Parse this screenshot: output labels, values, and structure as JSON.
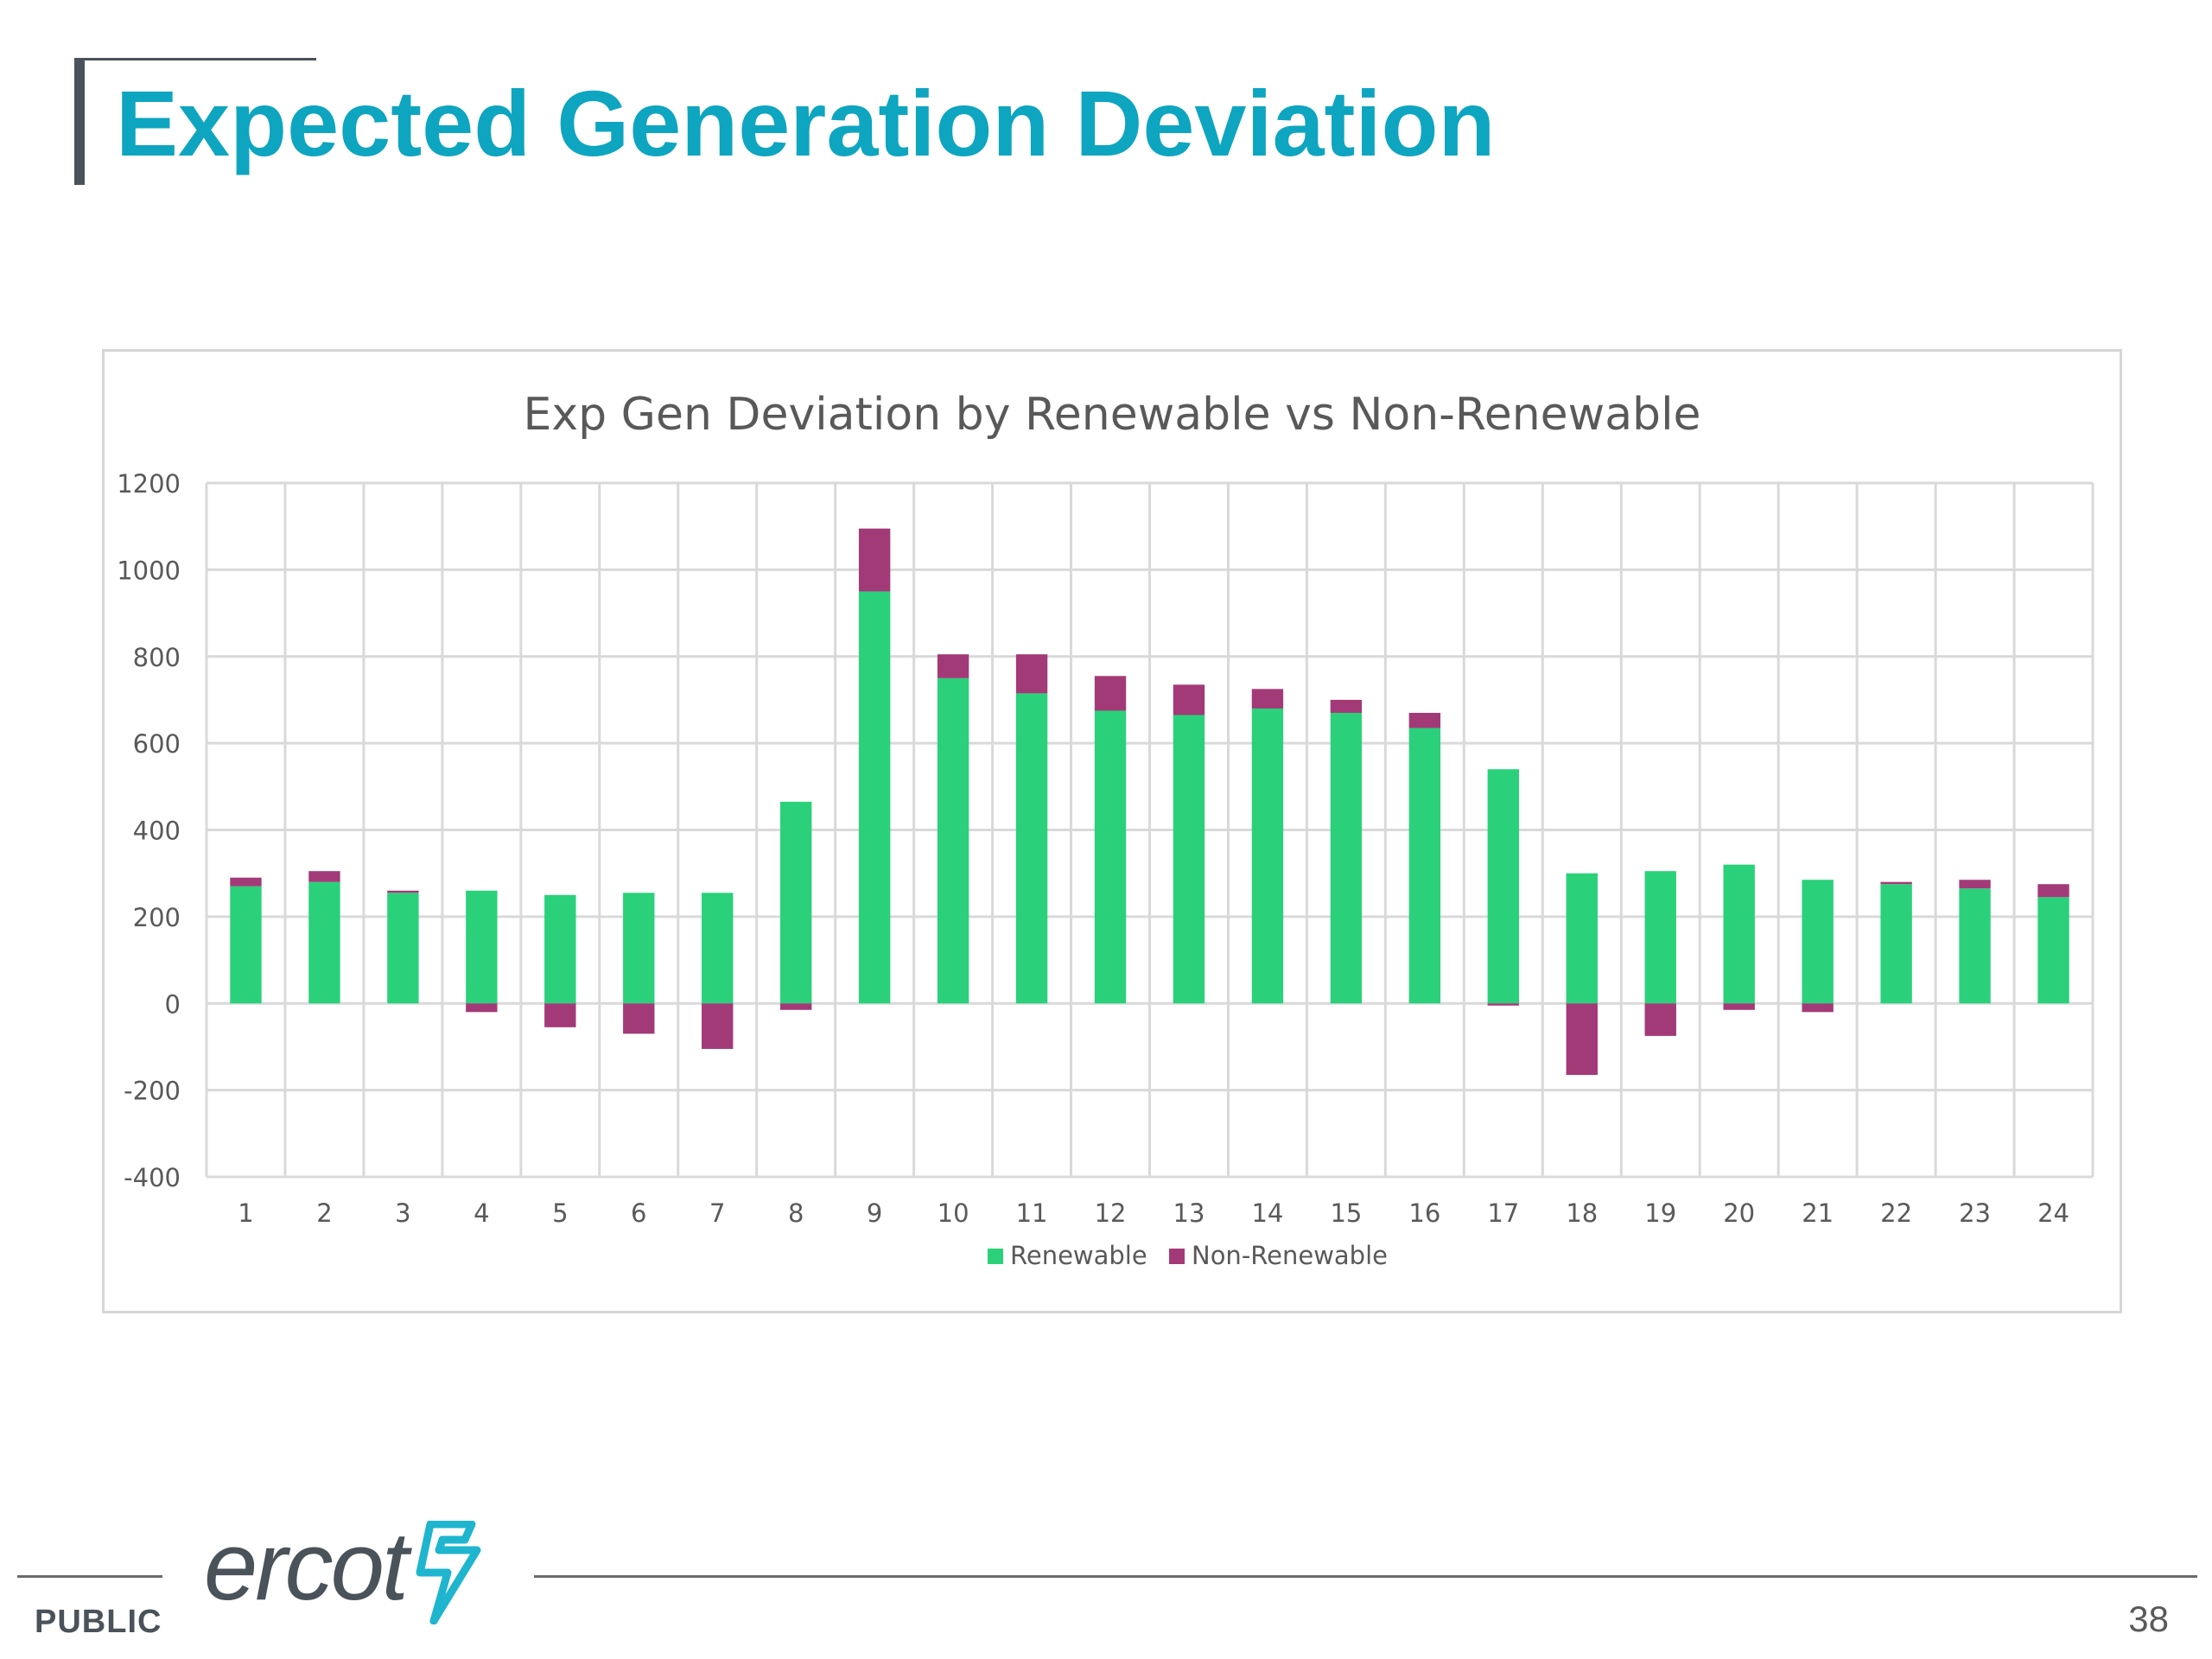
{
  "slide": {
    "title": "Expected Generation Deviation",
    "classification": "PUBLIC",
    "page_number": "38",
    "logo_text": "ercot"
  },
  "colors": {
    "title": "#0ea5c0",
    "renewable": "#2ad17a",
    "non_renewable": "#a33a78"
  },
  "chart_data": {
    "type": "bar",
    "stacked": true,
    "title": "Exp Gen Deviation by Renewable vs Non-Renewable",
    "xlabel": "",
    "ylabel": "",
    "categories": [
      "1",
      "2",
      "3",
      "4",
      "5",
      "6",
      "7",
      "8",
      "9",
      "10",
      "11",
      "12",
      "13",
      "14",
      "15",
      "16",
      "17",
      "18",
      "19",
      "20",
      "21",
      "22",
      "23",
      "24"
    ],
    "series": [
      {
        "name": "Renewable",
        "color": "#2ad17a",
        "values": [
          270,
          280,
          255,
          260,
          250,
          255,
          255,
          465,
          950,
          750,
          715,
          675,
          665,
          680,
          670,
          635,
          540,
          300,
          305,
          320,
          285,
          275,
          265,
          245
        ]
      },
      {
        "name": "Non-Renewable",
        "color": "#a33a78",
        "values": [
          20,
          25,
          5,
          -20,
          -55,
          -70,
          -105,
          -15,
          145,
          55,
          90,
          80,
          70,
          45,
          30,
          35,
          -5,
          -165,
          -75,
          -15,
          -20,
          5,
          20,
          30
        ]
      }
    ],
    "ylim": [
      -400,
      1200
    ],
    "yticks": [
      "-400",
      "-200",
      "0",
      "200",
      "400",
      "600",
      "800",
      "1000",
      "1200"
    ],
    "grid": true,
    "legend_position": "bottom"
  }
}
